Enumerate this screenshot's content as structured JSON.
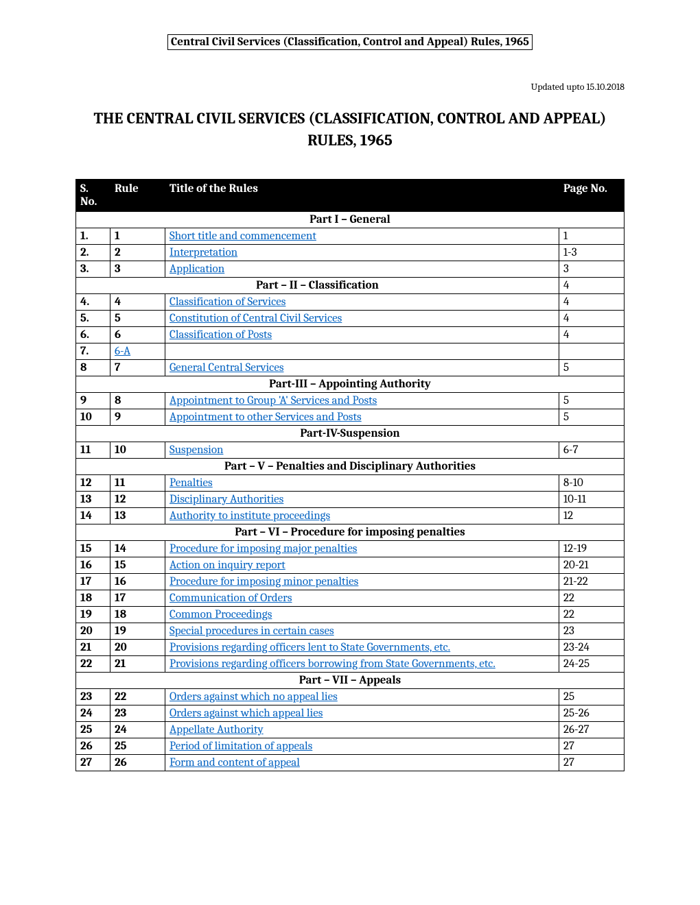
{
  "header": {
    "boxed_title": "Central Civil Services (Classification, Control and Appeal) Rules, 1965",
    "updated_text": "Updated upto 15.10.2018",
    "main_title": "THE CENTRAL CIVIL SERVICES (CLASSIFICATION, CONTROL AND APPEAL) RULES, 1965"
  },
  "table": {
    "headers": {
      "sno": "S. No.",
      "rule": "Rule",
      "title": "Title of the Rules",
      "page": "Page No."
    },
    "link_color": "#0563c1"
  },
  "sections": [
    {
      "type": "part",
      "label": "Part I – General",
      "page": ""
    },
    {
      "type": "row",
      "sno": "1.",
      "rule": "1",
      "title": "Short title and commencement",
      "link": true,
      "page": "1"
    },
    {
      "type": "row",
      "sno": "2.",
      "rule": "2",
      "title": "Interpretation",
      "link": true,
      "page": "1-3"
    },
    {
      "type": "row",
      "sno": "3.",
      "rule": "3",
      "title": "Application",
      "link": true,
      "page": "3"
    },
    {
      "type": "part-withpage",
      "label": "Part – II – Classification",
      "page": "4"
    },
    {
      "type": "row",
      "sno": "4.",
      "rule": "4",
      "title": "Classification of Services",
      "link": true,
      "page": "4"
    },
    {
      "type": "row",
      "sno": "5.",
      "rule": "5",
      "title": "Constitution of Central Civil Services",
      "link": true,
      "page": "4"
    },
    {
      "type": "row",
      "sno": "6.",
      "rule": "6",
      "title": "Classification of Posts",
      "link": true,
      "page": "4"
    },
    {
      "type": "row",
      "sno": "7.",
      "rule": "6-A",
      "rule_link": true,
      "title": "",
      "link": false,
      "page": ""
    },
    {
      "type": "row",
      "sno": "8",
      "rule": "7",
      "title": "General Central Services",
      "link": true,
      "page": "5"
    },
    {
      "type": "part",
      "label": "Part-III – Appointing Authority",
      "page": ""
    },
    {
      "type": "row",
      "sno": "9",
      "rule": "8",
      "title": "Appointment to Group 'A' Services and Posts",
      "link": true,
      "page": "5"
    },
    {
      "type": "row",
      "sno": "10",
      "rule": "9",
      "title": "Appointment to other Services and Posts",
      "link": true,
      "page": "5"
    },
    {
      "type": "part",
      "label": "Part-IV-Suspension",
      "page": ""
    },
    {
      "type": "row",
      "sno": "11",
      "rule": "10",
      "title": "Suspension",
      "link": true,
      "page": "6-7"
    },
    {
      "type": "part",
      "label": "Part – V – Penalties and Disciplinary Authorities",
      "page": ""
    },
    {
      "type": "row",
      "sno": "12",
      "rule": "11",
      "title": "Penalties",
      "link": true,
      "page": "8-10"
    },
    {
      "type": "row",
      "sno": "13",
      "rule": "12",
      "title": "Disciplinary Authorities",
      "link": true,
      "page": "10-11"
    },
    {
      "type": "row",
      "sno": "14",
      "rule": "13",
      "title": "Authority to institute proceedings",
      "link": true,
      "page": "12"
    },
    {
      "type": "part",
      "label": "Part – VI – Procedure for imposing penalties",
      "page": ""
    },
    {
      "type": "row",
      "sno": "15",
      "rule": "14",
      "title": "Procedure for imposing major penalties",
      "link": true,
      "page": "12-19"
    },
    {
      "type": "row",
      "sno": "16",
      "rule": "15",
      "title": "Action on inquiry report",
      "link": true,
      "page": "20-21"
    },
    {
      "type": "row",
      "sno": "17",
      "rule": "16",
      "title": "Procedure for imposing minor penalties",
      "link": true,
      "page": "21-22"
    },
    {
      "type": "row",
      "sno": "18",
      "rule": "17",
      "title": "Communication of Orders",
      "link": true,
      "page": "22"
    },
    {
      "type": "row",
      "sno": "19",
      "rule": "18",
      "title": "Common Proceedings",
      "link": true,
      "page": "22"
    },
    {
      "type": "row",
      "sno": "20",
      "rule": "19",
      "title": "Special procedures in certain cases",
      "link": true,
      "page": "23"
    },
    {
      "type": "row",
      "sno": "21",
      "rule": "20",
      "title": "Provisions regarding officers lent to State Governments, etc.",
      "link": true,
      "page": "23-24"
    },
    {
      "type": "row",
      "sno": "22",
      "rule": "21",
      "title": "Provisions regarding officers borrowing from State Governments, etc.",
      "link": true,
      "page": "24-25"
    },
    {
      "type": "part",
      "label": "Part – VII – Appeals",
      "page": ""
    },
    {
      "type": "row",
      "sno": "23",
      "rule": "22",
      "title": "Orders against which no appeal lies",
      "link": true,
      "page": "25"
    },
    {
      "type": "row",
      "sno": "24",
      "rule": "23",
      "title": "Orders against which appeal lies",
      "link": true,
      "page": "25-26"
    },
    {
      "type": "row",
      "sno": "25",
      "rule": "24",
      "title": "Appellate Authority",
      "link": true,
      "page": "26-27"
    },
    {
      "type": "row",
      "sno": "26",
      "rule": "25",
      "title": "Period of limitation of appeals",
      "link": true,
      "page": "27"
    },
    {
      "type": "row",
      "sno": "27",
      "rule": "26",
      "title": "Form and content of appeal",
      "link": true,
      "page": "27"
    }
  ]
}
